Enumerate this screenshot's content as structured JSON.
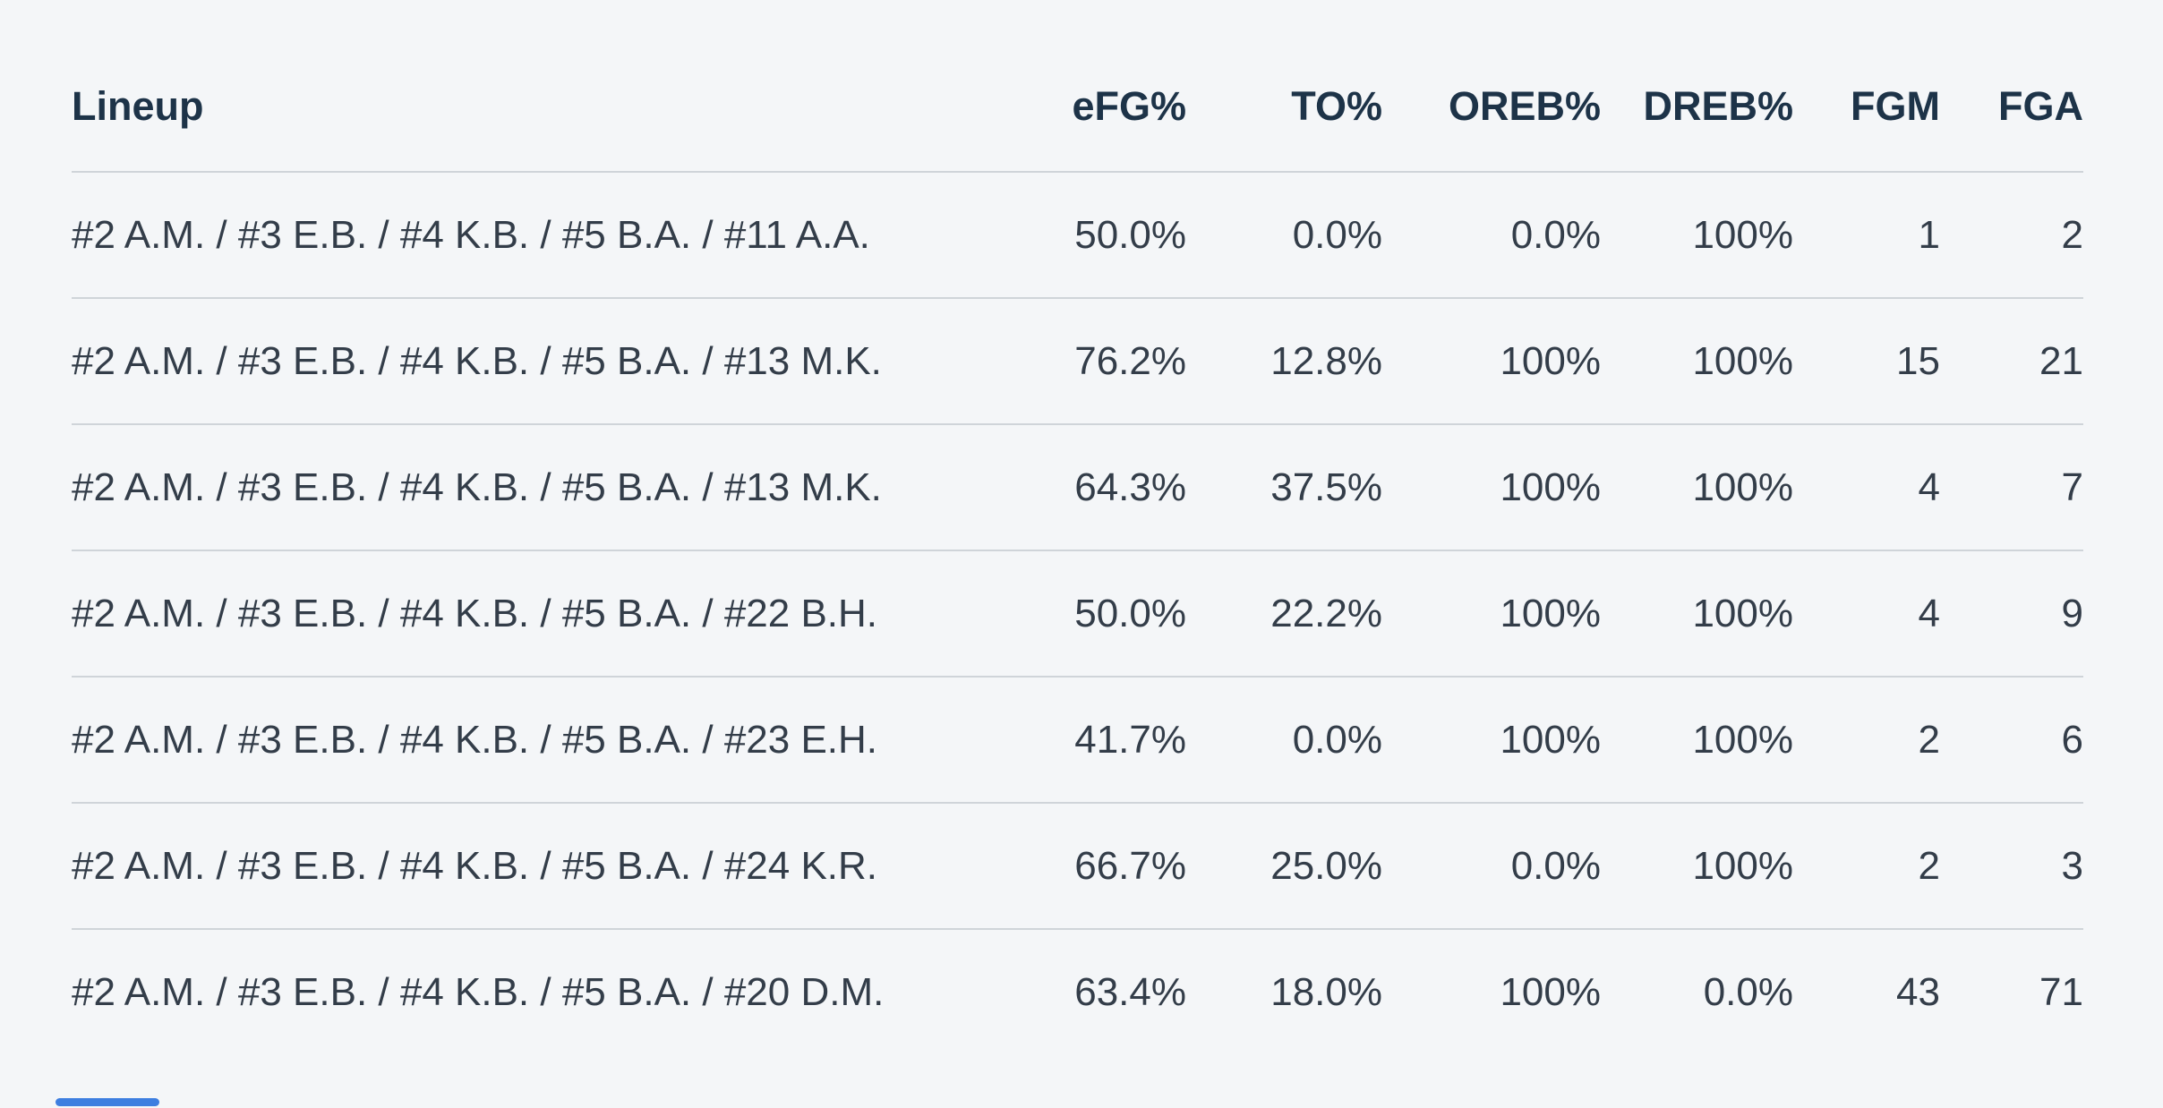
{
  "colors": {
    "background": "#f4f6f8",
    "header_text": "#1d3348",
    "body_text": "#333d49",
    "divider": "#cfd4d9",
    "scrollbar_thumb": "#3d7ee0"
  },
  "table": {
    "columns": [
      {
        "label": "Lineup"
      },
      {
        "label": "eFG%"
      },
      {
        "label": "TO%"
      },
      {
        "label": "OREB%"
      },
      {
        "label": "DREB%"
      },
      {
        "label": "FGM"
      },
      {
        "label": "FGA"
      }
    ],
    "rows": [
      {
        "lineup": "#2 A.M. / #3 E.B. / #4 K.B. / #5 B.A. / #11 A.A.",
        "efg": "50.0%",
        "to": "0.0%",
        "oreb": "0.0%",
        "dreb": "100%",
        "fgm": "1",
        "fga": "2"
      },
      {
        "lineup": "#2 A.M. / #3 E.B. / #4 K.B. / #5 B.A. / #13 M.K.",
        "efg": "76.2%",
        "to": "12.8%",
        "oreb": "100%",
        "dreb": "100%",
        "fgm": "15",
        "fga": "21"
      },
      {
        "lineup": "#2 A.M. / #3 E.B. / #4 K.B. / #5 B.A. / #13 M.K.",
        "efg": "64.3%",
        "to": "37.5%",
        "oreb": "100%",
        "dreb": "100%",
        "fgm": "4",
        "fga": "7"
      },
      {
        "lineup": "#2 A.M. / #3 E.B. / #4 K.B. / #5 B.A. / #22 B.H.",
        "efg": "50.0%",
        "to": "22.2%",
        "oreb": "100%",
        "dreb": "100%",
        "fgm": "4",
        "fga": "9"
      },
      {
        "lineup": "#2 A.M. / #3 E.B. / #4 K.B. / #5 B.A. / #23 E.H.",
        "efg": "41.7%",
        "to": "0.0%",
        "oreb": "100%",
        "dreb": "100%",
        "fgm": "2",
        "fga": "6"
      },
      {
        "lineup": "#2 A.M. / #3 E.B. / #4 K.B. / #5 B.A. / #24 K.R.",
        "efg": "66.7%",
        "to": "25.0%",
        "oreb": "0.0%",
        "dreb": "100%",
        "fgm": "2",
        "fga": "3"
      },
      {
        "lineup": "#2 A.M. / #3 E.B. / #4 K.B. / #5 B.A. / #20 D.M.",
        "efg": "63.4%",
        "to": "18.0%",
        "oreb": "100%",
        "dreb": "0.0%",
        "fgm": "43",
        "fga": "71"
      }
    ]
  }
}
